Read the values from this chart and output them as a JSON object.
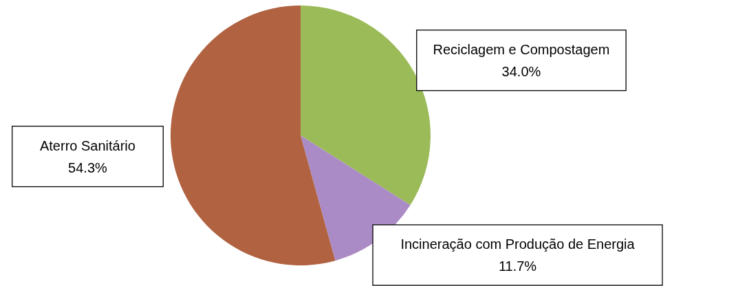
{
  "chart_data": {
    "type": "pie",
    "categories": [
      "Reciclagem e Compostagem",
      "Incineração com Produção de Energia",
      "Aterro Sanitário"
    ],
    "values": [
      34.0,
      11.7,
      54.3
    ],
    "colors": [
      "#9bbb59",
      "#ab8bc5",
      "#b06241"
    ],
    "value_labels": [
      "34.0%",
      "11.7%",
      "54.3%"
    ]
  }
}
